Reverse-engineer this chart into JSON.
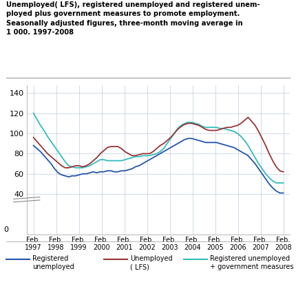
{
  "title_lines": [
    "Unemployed( LFS), registered unemployed and registered unem-",
    "ployed plus government measures to promote employment.",
    "Seasonally adjusted figures, three-month moving average in",
    "1 000. 1997-2008"
  ],
  "years": [
    1997,
    1998,
    1999,
    2000,
    2001,
    2002,
    2003,
    2004,
    2005,
    2006,
    2007,
    2008
  ],
  "yticks": [
    40,
    60,
    80,
    100,
    120,
    140
  ],
  "ytick_zero": 0,
  "ylim": [
    0,
    148
  ],
  "registered_unemployed": [
    88,
    85,
    82,
    78,
    74,
    70,
    65,
    61,
    59,
    58,
    57,
    58,
    58,
    59,
    60,
    60,
    61,
    62,
    61,
    62,
    62,
    63,
    63,
    62,
    62,
    63,
    63,
    64,
    65,
    67,
    68,
    70,
    72,
    74,
    76,
    78,
    80,
    82,
    84,
    86,
    88,
    90,
    92,
    94,
    95,
    95,
    94,
    93,
    92,
    91,
    91,
    91,
    91,
    90,
    89,
    88,
    87,
    86,
    84,
    82,
    80,
    78,
    74,
    70,
    65,
    60,
    55,
    50,
    46,
    43,
    41,
    41
  ],
  "lfs_unemployed": [
    96,
    92,
    88,
    84,
    80,
    77,
    74,
    71,
    68,
    66,
    66,
    67,
    68,
    68,
    67,
    68,
    70,
    73,
    76,
    80,
    83,
    86,
    87,
    87,
    87,
    85,
    82,
    80,
    78,
    78,
    79,
    80,
    80,
    80,
    82,
    85,
    88,
    90,
    93,
    96,
    100,
    104,
    107,
    109,
    110,
    110,
    109,
    108,
    106,
    104,
    103,
    103,
    103,
    104,
    105,
    106,
    106,
    107,
    108,
    110,
    113,
    116,
    112,
    108,
    102,
    95,
    88,
    80,
    73,
    67,
    63,
    62
  ],
  "reg_plus_govt": [
    120,
    114,
    108,
    103,
    97,
    92,
    87,
    82,
    77,
    72,
    68,
    67,
    66,
    66,
    66,
    67,
    68,
    70,
    72,
    74,
    74,
    73,
    73,
    73,
    73,
    73,
    74,
    75,
    76,
    77,
    77,
    78,
    78,
    78,
    79,
    80,
    82,
    85,
    90,
    95,
    100,
    105,
    108,
    110,
    111,
    111,
    110,
    109,
    107,
    106,
    106,
    106,
    106,
    105,
    105,
    104,
    103,
    102,
    100,
    97,
    93,
    88,
    82,
    76,
    70,
    65,
    60,
    56,
    53,
    51,
    51,
    51
  ],
  "colors": {
    "registered_unemployed": "#2255aa",
    "lfs_unemployed": "#993333",
    "reg_plus_govt": "#33bbbb"
  },
  "background_color": "#ffffff",
  "grid_color": "#c8d4e0"
}
